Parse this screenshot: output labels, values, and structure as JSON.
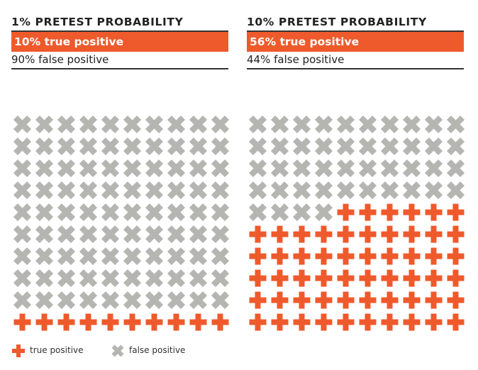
{
  "colors": {
    "true_positive": "#ee5a2c",
    "false_positive": "#b5b5b2",
    "rule": "#333333"
  },
  "chart_data": [
    {
      "type": "waffle",
      "title": "1% PRETEST PROBABILITY",
      "true_label": "10% true positive",
      "false_label": "90% false positive",
      "rows": 10,
      "cols": 10,
      "true_positive": 10,
      "false_positive": 90
    },
    {
      "type": "waffle",
      "title": "10% PRETEST PROBABILITY",
      "true_label": "56% true positive",
      "false_label": "44% false positive",
      "rows": 10,
      "cols": 10,
      "true_positive": 56,
      "false_positive": 44
    }
  ],
  "legend": {
    "true_label": "true positive",
    "false_label": "false positive",
    "true_icon": "plus-icon",
    "false_icon": "x-icon"
  }
}
